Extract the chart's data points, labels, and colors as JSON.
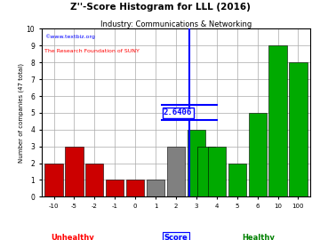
{
  "title": "Z''-Score Histogram for LLL (2016)",
  "subtitle": "Industry: Communications & Networking",
  "watermark1": "©www.textbiz.org",
  "watermark2": "The Research Foundation of SUNY",
  "xlabel_main": "Score",
  "xlabel_left": "Unhealthy",
  "xlabel_right": "Healthy",
  "ylabel": "Number of companies (47 total)",
  "ylim": [
    0,
    10
  ],
  "yticks": [
    0,
    1,
    2,
    3,
    4,
    5,
    6,
    7,
    8,
    9,
    10
  ],
  "score_line": 2.6406,
  "score_label": "2.6406",
  "bars_info": [
    [
      -10,
      2,
      "#cc0000"
    ],
    [
      -5,
      3,
      "#cc0000"
    ],
    [
      -2,
      2,
      "#cc0000"
    ],
    [
      -1,
      1,
      "#cc0000"
    ],
    [
      0,
      1,
      "#cc0000"
    ],
    [
      1,
      1,
      "#808080"
    ],
    [
      2,
      3,
      "#808080"
    ],
    [
      3,
      4,
      "#00aa00"
    ],
    [
      3.5,
      3,
      "#00aa00"
    ],
    [
      4,
      3,
      "#00aa00"
    ],
    [
      5,
      2,
      "#00aa00"
    ],
    [
      6,
      5,
      "#00aa00"
    ],
    [
      10,
      9,
      "#00aa00"
    ],
    [
      100,
      8,
      "#00aa00"
    ]
  ],
  "tick_positions_data": [
    -10,
    -5,
    -2,
    -1,
    0,
    1,
    2,
    3,
    4,
    5,
    6,
    10,
    100
  ],
  "tick_labels": [
    "-10",
    "-5",
    "-2",
    "-1",
    "0",
    "1",
    "2",
    "3",
    "4",
    "5",
    "6",
    "10",
    "100"
  ],
  "background_color": "#ffffff",
  "grid_color": "#aaaaaa"
}
